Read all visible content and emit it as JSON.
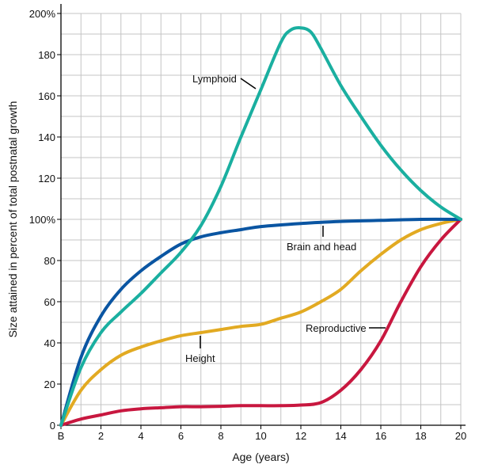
{
  "chart_data": {
    "type": "line",
    "xlabel": "Age (years)",
    "ylabel": "Size attained in percent of total postnatal growth",
    "xlim": [
      0,
      20
    ],
    "ylim": [
      0,
      200
    ],
    "grid": true,
    "x_ticks": [
      {
        "value": 0,
        "label": "B"
      },
      {
        "value": 2,
        "label": "2"
      },
      {
        "value": 4,
        "label": "4"
      },
      {
        "value": 6,
        "label": "6"
      },
      {
        "value": 8,
        "label": "8"
      },
      {
        "value": 10,
        "label": "10"
      },
      {
        "value": 12,
        "label": "12"
      },
      {
        "value": 14,
        "label": "14"
      },
      {
        "value": 16,
        "label": "16"
      },
      {
        "value": 18,
        "label": "18"
      },
      {
        "value": 20,
        "label": "20"
      }
    ],
    "y_ticks": [
      {
        "value": 0,
        "label": "0"
      },
      {
        "value": 20,
        "label": "20"
      },
      {
        "value": 40,
        "label": "40"
      },
      {
        "value": 60,
        "label": "60"
      },
      {
        "value": 80,
        "label": "80"
      },
      {
        "value": 100,
        "label": "100%"
      },
      {
        "value": 120,
        "label": "120"
      },
      {
        "value": 140,
        "label": "140"
      },
      {
        "value": 160,
        "label": "160"
      },
      {
        "value": 180,
        "label": "180"
      },
      {
        "value": 200,
        "label": "200%"
      }
    ],
    "series": [
      {
        "name": "Lymphoid",
        "color": "#1aafa0",
        "x": [
          0,
          1,
          2,
          3,
          4,
          5,
          6,
          7,
          8,
          9,
          10,
          11,
          11.5,
          12,
          12.5,
          13,
          14,
          15,
          16,
          17,
          18,
          19,
          20
        ],
        "y": [
          0,
          28,
          45,
          55,
          64,
          74,
          84,
          97,
          116,
          140,
          163,
          186,
          192,
          193,
          191,
          183,
          165,
          150,
          136,
          124,
          114,
          106,
          100
        ]
      },
      {
        "name": "Brain and head",
        "color": "#0a55a2",
        "x": [
          0,
          1,
          2,
          3,
          4,
          5,
          6,
          7,
          8,
          9,
          10,
          12,
          14,
          16,
          18,
          20
        ],
        "y": [
          0,
          33,
          53,
          66,
          75,
          82,
          88,
          91.5,
          93.5,
          95,
          96.5,
          98,
          99,
          99.5,
          100,
          100
        ]
      },
      {
        "name": "Height",
        "color": "#e2aa22",
        "x": [
          0,
          1,
          2,
          3,
          4,
          5,
          6,
          7,
          8,
          9,
          10,
          11,
          12,
          13,
          14,
          15,
          16,
          17,
          18,
          19,
          20
        ],
        "y": [
          0,
          17,
          27,
          34,
          38,
          41,
          43.5,
          45,
          46.5,
          48,
          49,
          52,
          55,
          60,
          66,
          75,
          83,
          90,
          95,
          98,
          100
        ]
      },
      {
        "name": "Reproductive",
        "color": "#c8173f",
        "x": [
          0,
          1,
          2,
          3,
          4,
          5,
          6,
          7,
          8,
          9,
          10,
          11,
          12,
          13,
          14,
          15,
          16,
          17,
          18,
          19,
          20
        ],
        "y": [
          0,
          3,
          5,
          7,
          8,
          8.5,
          9,
          9,
          9.2,
          9.5,
          9.5,
          9.5,
          9.8,
          11,
          17,
          27,
          41,
          60,
          77,
          90,
          100
        ]
      }
    ],
    "annotations": [
      {
        "text": "Lymphoid",
        "series": "Lymphoid"
      },
      {
        "text": "Brain and head",
        "series": "Brain and head"
      },
      {
        "text": "Height",
        "series": "Height"
      },
      {
        "text": "Reproductive",
        "series": "Reproductive"
      }
    ]
  }
}
